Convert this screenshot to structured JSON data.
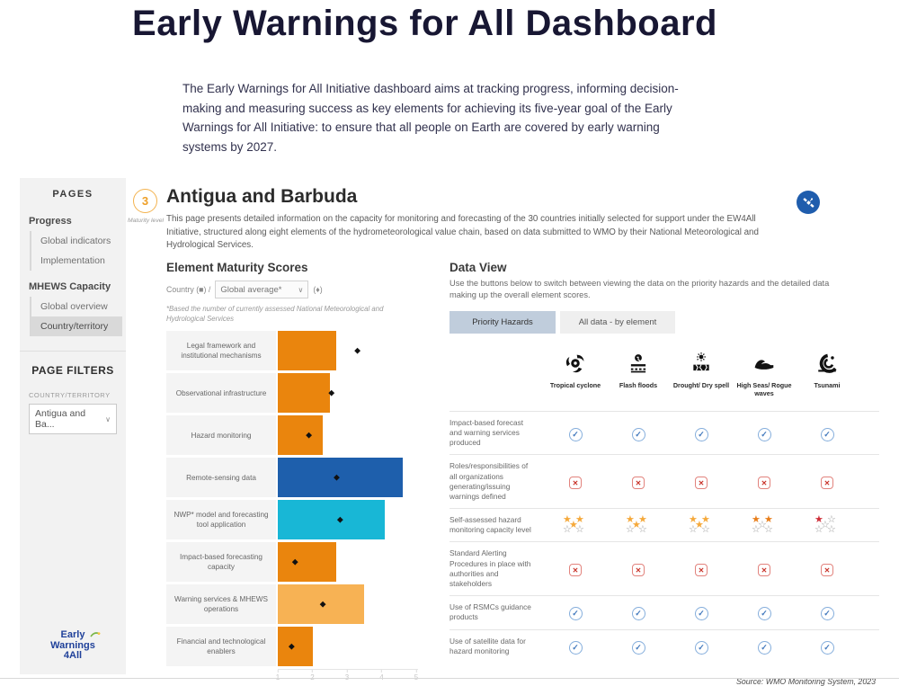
{
  "page": {
    "title": "Early Warnings for All Dashboard",
    "intro": "The Early Warnings for All Initiative dashboard aims at tracking progress, informing decision-making and measuring success as key elements for achieving its five-year goal of the Early Warnings for All Initiative: to ensure that all people on Earth are covered by early warning systems by 2027."
  },
  "sidebar": {
    "pages_title": "PAGES",
    "groups": [
      {
        "label": "Progress",
        "items": [
          {
            "label": "Global indicators",
            "selected": false
          },
          {
            "label": "Implementation",
            "selected": false
          }
        ]
      },
      {
        "label": "MHEWS Capacity",
        "items": [
          {
            "label": "Global overview",
            "selected": false
          },
          {
            "label": "Country/territory",
            "selected": true
          }
        ]
      }
    ],
    "filters_title": "PAGE FILTERS",
    "filter_label": "COUNTRY/TERRITORY",
    "filter_value": "Antigua and Ba...",
    "logo": {
      "line1": "Early",
      "line2": "Warnings",
      "line3": "4All"
    }
  },
  "header": {
    "maturity_value": "3",
    "maturity_label": "Maturity level",
    "country": "Antigua and Barbuda",
    "description": "This page presents detailed information on the capacity for monitoring and forecasting of the 30 countries initially selected for support under the EW4All Initiative, structured along eight elements of the hydrometeorological value chain, based on data submitted to WMO by their National Meteorological and Hydrological Services."
  },
  "chart_data": {
    "type": "bar",
    "title": "Element Maturity Scores",
    "legend": {
      "country_label": "Country (■) /",
      "dropdown_value": "Global average*",
      "diamond_label": "(♦)"
    },
    "footnote": "*Based the number of currently assessed National Meteorological and Hydrological Services",
    "orientation": "horizontal",
    "xlim": [
      1,
      5
    ],
    "ticks": [
      1,
      2,
      3,
      4,
      5
    ],
    "categories": [
      "Legal framework and institutional mechanisms",
      "Observational infrastructure",
      "Hazard monitoring",
      "Remote-sensing data",
      "NWP* model and forecasting tool application",
      "Impact-based forecasting capacity",
      "Warning services & MHEWS operations",
      "Financial and technological enablers"
    ],
    "series": [
      {
        "name": "Country",
        "marker": "bar",
        "values": [
          2.7,
          2.5,
          2.3,
          4.6,
          4.1,
          2.7,
          3.5,
          2.0
        ]
      },
      {
        "name": "Global average*",
        "marker": "diamond",
        "values": [
          3.3,
          2.55,
          1.9,
          2.7,
          2.8,
          1.5,
          2.3,
          1.4
        ]
      }
    ],
    "bar_colors": [
      "#EA850D",
      "#EA850D",
      "#EA850D",
      "#1E5FAC",
      "#18B7D6",
      "#EA850D",
      "#F7B254",
      "#EA850D"
    ]
  },
  "data_view": {
    "title": "Data View",
    "description": "Use the buttons below to switch between viewing the data on the priority hazards and the detailed data making up the overall element scores.",
    "buttons": [
      {
        "label": "Priority Hazards",
        "active": true
      },
      {
        "label": "All data - by element",
        "active": false
      }
    ],
    "hazards": [
      {
        "icon": "tropical-cyclone",
        "label": "Tropical cyclone"
      },
      {
        "icon": "flash-floods",
        "label": "Flash floods"
      },
      {
        "icon": "drought-dry-spell",
        "label": "Drought/ Dry spell"
      },
      {
        "icon": "high-seas-rogue-waves",
        "label": "High Seas/ Rogue waves"
      },
      {
        "icon": "tsunami",
        "label": "Tsunami"
      }
    ],
    "rows": [
      {
        "label": "Impact-based forecast and warning services produced",
        "cells": [
          {
            "type": "check"
          },
          {
            "type": "check"
          },
          {
            "type": "check"
          },
          {
            "type": "check"
          },
          {
            "type": "check"
          }
        ]
      },
      {
        "label": "Roles/responsibilities of all organizations generating/issuing warnings defined",
        "cells": [
          {
            "type": "cross"
          },
          {
            "type": "cross"
          },
          {
            "type": "cross"
          },
          {
            "type": "cross"
          },
          {
            "type": "cross"
          }
        ]
      },
      {
        "label": "Self-assessed hazard monitoring capacity level",
        "cells": [
          {
            "type": "stars",
            "value": 3,
            "color": "#F5A93B"
          },
          {
            "type": "stars",
            "value": 3,
            "color": "#F5A93B"
          },
          {
            "type": "stars",
            "value": 3,
            "color": "#F5A93B"
          },
          {
            "type": "stars",
            "value": 2,
            "color": "#E87E1B"
          },
          {
            "type": "stars",
            "value": 1,
            "color": "#CE2F39"
          }
        ]
      },
      {
        "label": "Standard Alerting Procedures in place with authorities and stakeholders",
        "cells": [
          {
            "type": "cross"
          },
          {
            "type": "cross"
          },
          {
            "type": "cross"
          },
          {
            "type": "cross"
          },
          {
            "type": "cross"
          }
        ]
      },
      {
        "label": "Use of RSMCs guidance products",
        "cells": [
          {
            "type": "check"
          },
          {
            "type": "check"
          },
          {
            "type": "check"
          },
          {
            "type": "check"
          },
          {
            "type": "check"
          }
        ]
      },
      {
        "label": "Use of satellite data for hazard monitoring",
        "cells": [
          {
            "type": "check"
          },
          {
            "type": "check"
          },
          {
            "type": "check"
          },
          {
            "type": "check"
          },
          {
            "type": "check"
          }
        ]
      }
    ],
    "source": "Source: WMO Monitoring System, 2023",
    "icons": {
      "check": "✓",
      "cross": "✕",
      "star_filled": "★",
      "star_empty": "☆",
      "diamond": "◆",
      "chevron": "∨"
    },
    "status_colors": {
      "check_blue": "#4279BD",
      "cross_red": "#C9342B"
    }
  }
}
